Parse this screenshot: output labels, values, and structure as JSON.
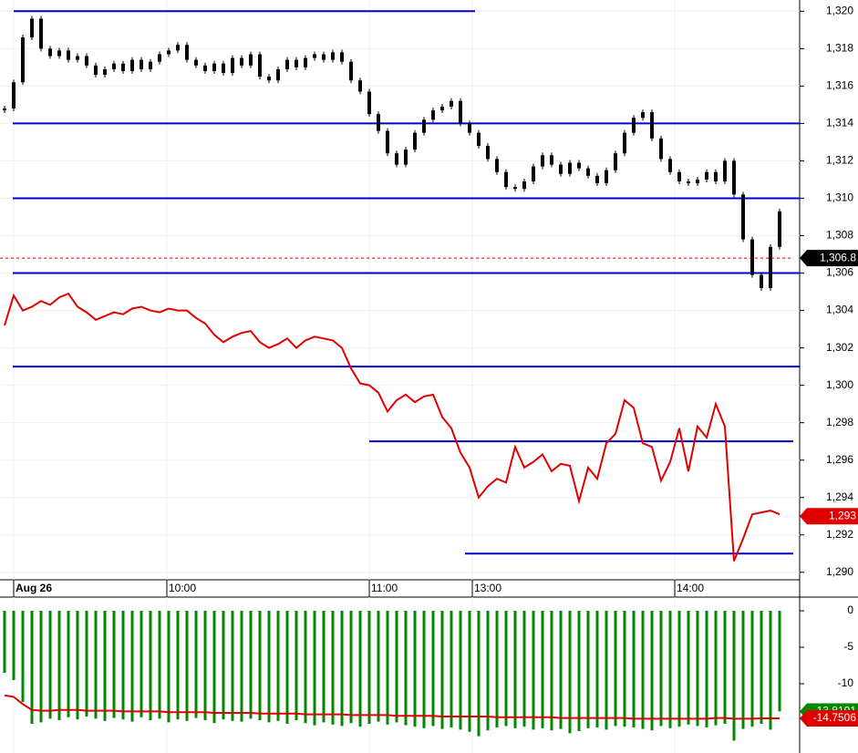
{
  "chart_data": [
    {
      "type": "price",
      "xlim": [
        -0.5,
        86.5
      ],
      "xticks": [
        {
          "value": 1.0,
          "label": "Aug 26"
        },
        {
          "value": 17.8,
          "label": "10:00"
        },
        {
          "value": 40.0,
          "label": "11:00"
        },
        {
          "value": 51.3,
          "label": "13:00"
        },
        {
          "value": 73.5,
          "label": "14:00"
        }
      ],
      "ylim": [
        1289.6,
        1320.6
      ],
      "yticks": [
        {
          "value": 1290,
          "label": "1,290"
        },
        {
          "value": 1292,
          "label": "1,292"
        },
        {
          "value": 1294,
          "label": "1,294"
        },
        {
          "value": 1296,
          "label": "1,296"
        },
        {
          "value": 1298,
          "label": "1,298"
        },
        {
          "value": 1300,
          "label": "1,300"
        },
        {
          "value": 1302,
          "label": "1,302"
        },
        {
          "value": 1304,
          "label": "1,304"
        },
        {
          "value": 1306,
          "label": "1,306"
        },
        {
          "value": 1308,
          "label": "1,308"
        },
        {
          "value": 1310,
          "label": "1,310"
        },
        {
          "value": 1312,
          "label": "1,312"
        },
        {
          "value": 1314,
          "label": "1,314"
        },
        {
          "value": 1316,
          "label": "1,316"
        },
        {
          "value": 1318,
          "label": "1,318"
        },
        {
          "value": 1320,
          "label": "1,320"
        }
      ],
      "grid": true,
      "series": [
        {
          "type": "candle",
          "color": "#000000",
          "values": [
            1314.8,
            1316.2,
            1318.6,
            1319.6,
            1318.0,
            1317.6,
            1317.9,
            1317.4,
            1317.6,
            1317.1,
            1316.6,
            1316.9,
            1317.2,
            1316.8,
            1317.4,
            1316.9,
            1317.3,
            1317.7,
            1317.9,
            1318.2,
            1317.4,
            1317.1,
            1316.8,
            1317.2,
            1316.7,
            1317.5,
            1317.1,
            1317.7,
            1316.5,
            1316.3,
            1316.9,
            1317.4,
            1317.0,
            1317.5,
            1317.7,
            1317.4,
            1317.8,
            1317.3,
            1316.3,
            1315.7,
            1314.5,
            1313.6,
            1312.4,
            1311.8,
            1312.6,
            1313.5,
            1314.2,
            1314.7,
            1314.9,
            1315.2,
            1314.0,
            1313.5,
            1312.8,
            1312.1,
            1311.4,
            1310.6,
            1310.5,
            1310.9,
            1311.7,
            1312.3,
            1311.8,
            1311.3,
            1311.9,
            1311.6,
            1311.2,
            1310.8,
            1311.5,
            1312.4,
            1313.5,
            1314.3,
            1314.6,
            1313.2,
            1312.1,
            1311.4,
            1310.9,
            1310.8,
            1311.0,
            1311.4,
            1310.9,
            1312.0,
            1310.2,
            1307.8,
            1305.9,
            1305.2,
            1307.4,
            1309.3
          ]
        },
        {
          "type": "line",
          "color": "#e00000",
          "values": [
            1303.2,
            1304.8,
            1304.0,
            1304.2,
            1304.5,
            1304.3,
            1304.7,
            1304.9,
            1304.2,
            1303.9,
            1303.5,
            1303.7,
            1303.9,
            1303.8,
            1304.1,
            1304.2,
            1304.0,
            1303.9,
            1304.1,
            1304.0,
            1304.0,
            1303.6,
            1303.3,
            1302.7,
            1302.3,
            1302.6,
            1302.8,
            1302.9,
            1302.3,
            1302.0,
            1302.2,
            1302.5,
            1302.0,
            1302.4,
            1302.6,
            1302.5,
            1302.4,
            1302.0,
            1300.9,
            1300.1,
            1300.0,
            1299.6,
            1298.6,
            1299.2,
            1299.5,
            1299.1,
            1299.4,
            1299.5,
            1298.3,
            1297.7,
            1296.4,
            1295.6,
            1294.0,
            1294.6,
            1295.0,
            1294.8,
            1296.7,
            1295.6,
            1295.9,
            1296.3,
            1295.4,
            1295.8,
            1295.7,
            1293.8,
            1295.6,
            1295.0,
            1296.9,
            1297.4,
            1299.2,
            1298.8,
            1296.9,
            1296.7,
            1294.9,
            1295.9,
            1297.7,
            1295.4,
            1297.8,
            1297.2,
            1299.0,
            1297.8,
            1290.6,
            1291.8,
            1293.1,
            1293.2,
            1293.3,
            1293.1
          ]
        }
      ],
      "level_color": "#0000cc",
      "levels": [
        {
          "value": 1320,
          "xrange": [
            1.0,
            51.6
          ]
        },
        {
          "value": 1314
        },
        {
          "value": 1310
        },
        {
          "value": 1306
        },
        {
          "value": 1301
        },
        {
          "value": 1297,
          "xrange": [
            40.0,
            86.5
          ]
        },
        {
          "value": 1291,
          "xrange": [
            50.5,
            86.5
          ]
        }
      ],
      "tags": [
        {
          "value": 1306.8,
          "label": "1,306.8",
          "color": "#000000",
          "dashed": true
        },
        {
          "value": 1293,
          "label": "1,293",
          "color": "#e00000"
        }
      ]
    },
    {
      "type": "indicator",
      "xlim": [
        -0.5,
        86.5
      ],
      "ylim": [
        -19.5,
        1.875
      ],
      "yticks": [
        0,
        -5,
        -10
      ],
      "series": [
        {
          "type": "bar",
          "color": "#008800",
          "values": [
            -8.5,
            -9.5,
            -12.5,
            -15.5,
            -15.3,
            -14.8,
            -15.0,
            -14.6,
            -14.9,
            -14.5,
            -14.8,
            -15.1,
            -14.7,
            -14.9,
            -15.2,
            -14.6,
            -15.0,
            -14.8,
            -15.3,
            -14.9,
            -15.1,
            -14.7,
            -15.0,
            -15.4,
            -14.9,
            -15.1,
            -15.2,
            -14.8,
            -15.0,
            -15.3,
            -15.1,
            -15.5,
            -15.0,
            -15.4,
            -15.7,
            -15.3,
            -15.6,
            -15.8,
            -15.4,
            -15.9,
            -15.5,
            -15.2,
            -15.6,
            -15.3,
            -15.7,
            -15.9,
            -16.1,
            -15.8,
            -16.2,
            -16.0,
            -16.3,
            -16.6,
            -17.2,
            -16.4,
            -16.0,
            -15.8,
            -16.1,
            -15.9,
            -16.3,
            -16.1,
            -16.4,
            -16.2,
            -16.8,
            -16.5,
            -16.1,
            -16.0,
            -16.3,
            -15.8,
            -15.9,
            -16.0,
            -16.2,
            -16.4,
            -15.8,
            -16.1,
            -15.9,
            -15.6,
            -15.8,
            -16.0,
            -15.7,
            -15.5,
            -17.8,
            -16.2,
            -15.9,
            -15.5,
            -16.3,
            -13.8
          ]
        },
        {
          "type": "line",
          "color": "#e00000",
          "values": [
            -11.6,
            -11.8,
            -12.8,
            -13.6,
            -13.7,
            -13.7,
            -13.6,
            -13.6,
            -13.6,
            -13.7,
            -13.7,
            -13.7,
            -13.7,
            -13.8,
            -13.8,
            -13.8,
            -13.8,
            -13.8,
            -13.9,
            -13.9,
            -13.9,
            -13.9,
            -13.9,
            -14.0,
            -14.0,
            -14.0,
            -14.0,
            -14.0,
            -14.1,
            -14.1,
            -14.1,
            -14.1,
            -14.1,
            -14.2,
            -14.2,
            -14.2,
            -14.2,
            -14.2,
            -14.3,
            -14.3,
            -14.3,
            -14.3,
            -14.3,
            -14.4,
            -14.4,
            -14.4,
            -14.4,
            -14.4,
            -14.5,
            -14.5,
            -14.5,
            -14.5,
            -14.5,
            -14.5,
            -14.6,
            -14.6,
            -14.6,
            -14.6,
            -14.6,
            -14.6,
            -14.6,
            -14.7,
            -14.7,
            -14.7,
            -14.7,
            -14.7,
            -14.7,
            -14.7,
            -14.7,
            -14.8,
            -14.8,
            -14.8,
            -14.8,
            -14.8,
            -14.8,
            -14.8,
            -14.8,
            -14.8,
            -14.7,
            -14.7,
            -14.8,
            -14.8,
            -14.8,
            -14.75,
            -14.75,
            -14.75
          ]
        }
      ],
      "tags": [
        {
          "value": -13.8101,
          "label": "-13.8101",
          "color": "#008800"
        },
        {
          "value": -14.7506,
          "label": "-14.7506",
          "color": "#e00000"
        }
      ]
    }
  ]
}
